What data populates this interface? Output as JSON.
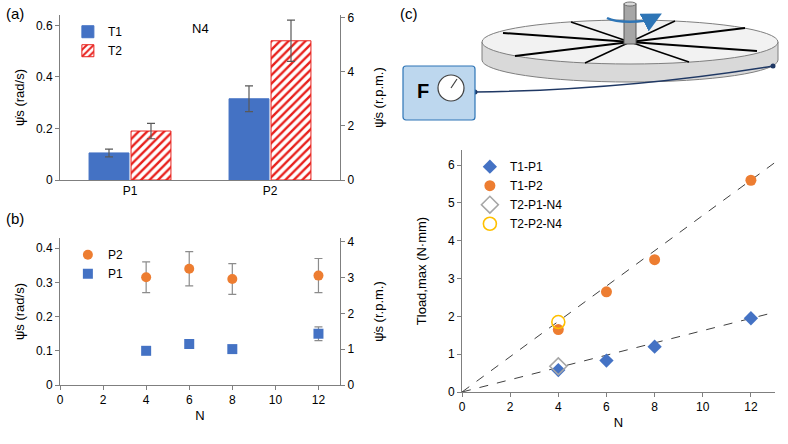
{
  "chart_data": [
    {
      "panel_label": "(a)",
      "type": "bar",
      "categories": [
        "P1",
        "P2"
      ],
      "series": [
        {
          "name": "T1",
          "color": "#4472c4",
          "values": [
            0.105,
            0.315
          ],
          "errors": [
            0.015,
            0.05
          ]
        },
        {
          "name": "T2",
          "color": "#e8201c",
          "marker": "hatched",
          "values": [
            0.19,
            0.54
          ],
          "errors": [
            0.03,
            0.08
          ]
        }
      ],
      "y_label": "ψ̇s (rad/s)",
      "y2_label": "ψ̇s (r.p.m.)",
      "ylim": [
        0,
        0.64
      ],
      "yticks": [
        0,
        0.2,
        0.4,
        0.6
      ],
      "y2lim": [
        0,
        6.11
      ],
      "y2ticks": [
        0,
        2,
        4,
        6
      ],
      "annotations": [
        "N4"
      ],
      "legend": "top left",
      "grid": false
    },
    {
      "panel_label": "(b)",
      "type": "scatter",
      "x_label": "N",
      "y_label": "ψ̇s (rad/s)",
      "y2_label": "ψ̇s (r.p.m.)",
      "series": [
        {
          "name": "P2",
          "color": "#ed7d31",
          "marker": "circle",
          "x": [
            4,
            6,
            8,
            12
          ],
          "values": [
            0.315,
            0.34,
            0.31,
            0.32
          ],
          "errors": [
            0.045,
            0.05,
            0.045,
            0.05
          ]
        },
        {
          "name": "P1",
          "color": "#4472c4",
          "marker": "square",
          "x": [
            4,
            6,
            8,
            12
          ],
          "values": [
            0.1,
            0.12,
            0.105,
            0.15
          ],
          "errors": [
            0.006,
            0.012,
            0.006,
            0.02
          ]
        }
      ],
      "xlim": [
        0,
        13
      ],
      "xticks": [
        0,
        2,
        4,
        6,
        8,
        10,
        12
      ],
      "ylim": [
        0,
        0.43
      ],
      "yticks": [
        0,
        0.1,
        0.2,
        0.3,
        0.4
      ],
      "y2lim": [
        0,
        4.11
      ],
      "y2ticks": [
        0,
        1,
        2,
        3,
        4
      ],
      "legend": "top left",
      "grid": false
    },
    {
      "panel_label": "(c)",
      "type": "scatter",
      "gauge_label": "F",
      "x_label": "N",
      "y_label": "Tload,max (N·mm)",
      "series": [
        {
          "name": "T1-P1",
          "color": "#4472c4",
          "marker": "diamond",
          "x": [
            4,
            6,
            8,
            12
          ],
          "values": [
            0.58,
            0.83,
            1.2,
            1.95
          ]
        },
        {
          "name": "T1-P2",
          "color": "#ed7d31",
          "marker": "circle",
          "x": [
            4,
            6,
            8,
            12
          ],
          "values": [
            1.65,
            2.65,
            3.5,
            5.6
          ]
        },
        {
          "name": "T2-P1-N4",
          "color": "#a6a6a6",
          "marker": "diamond-open",
          "x": [
            4
          ],
          "values": [
            0.68
          ]
        },
        {
          "name": "T2-P2-N4",
          "color": "#ffc000",
          "marker": "circle-open",
          "x": [
            4
          ],
          "values": [
            1.85
          ]
        }
      ],
      "fit_lines": [
        {
          "x": [
            0,
            13
          ],
          "values": [
            0,
            6.07
          ],
          "line_style": "dashed"
        },
        {
          "x": [
            0,
            13
          ],
          "values": [
            0,
            2.11
          ],
          "line_style": "dashed"
        }
      ],
      "xlim": [
        0,
        13
      ],
      "xticks": [
        0,
        2,
        4,
        6,
        8,
        10,
        12
      ],
      "ylim": [
        0,
        6.4
      ],
      "yticks": [
        0,
        1,
        2,
        3,
        4,
        5,
        6
      ],
      "legend": "top left",
      "grid": false
    }
  ]
}
